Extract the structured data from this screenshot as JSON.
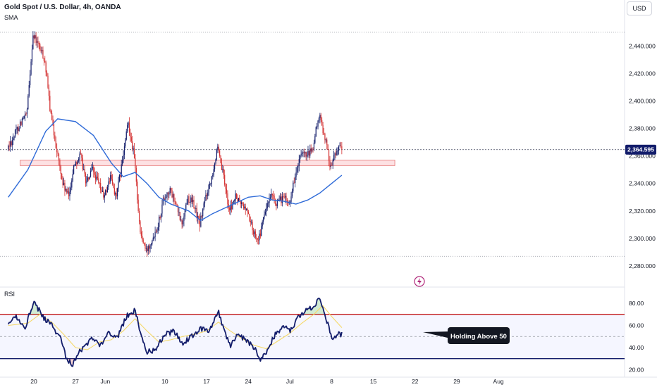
{
  "header": {
    "title": "Gold Spot / U.S. Dollar, 4h, OANDA",
    "indicator": "SMA",
    "currency": "USD"
  },
  "rsi_panel": {
    "label": "RSI"
  },
  "annotation": {
    "text": "Holding Above 50"
  },
  "current_price": "2,364.595",
  "colors": {
    "up": "#131d6b",
    "down": "#d32f2f",
    "sma": "#2f6bd8",
    "zone_fill": "#fde1e3",
    "zone_stroke": "#e57373",
    "rsi_line": "#131d6b",
    "rsi_ma": "#f5d96b",
    "rsi_upper": "#c62828",
    "rsi_lower": "#131d6b",
    "price_tag": "#131d6b",
    "flash_icon": "#b0287a"
  },
  "icons": {
    "flash": "flash-icon"
  },
  "chart_data": [
    {
      "type": "candlestick",
      "title": "Gold Spot / U.S. Dollar, 4h, OANDA",
      "y_ticks": [
        "2,440.000",
        "2,420.000",
        "2,400.000",
        "2,380.000",
        "2,360.000",
        "2,340.000",
        "2,320.000",
        "2,300.000",
        "2,280.000"
      ],
      "y_tick_values": [
        2440,
        2420,
        2400,
        2380,
        2360,
        2340,
        2320,
        2300,
        2280
      ],
      "ylim": [
        2281,
        2453
      ],
      "x_ticks": [
        "20",
        "27",
        "Jun",
        "10",
        "17",
        "24",
        "Jul",
        "8",
        "15",
        "22",
        "29",
        "Aug"
      ],
      "x_tick_days": [
        0,
        7,
        12,
        22,
        29,
        36,
        43,
        50,
        57,
        64,
        71,
        78
      ],
      "x_start_label": "May 20",
      "price_levels": [
        2450,
        2287
      ],
      "current_price_value": 2364.595,
      "resistance_zone": {
        "low": 2353,
        "high": 2357,
        "start_day": -2.3,
        "end_day": 60.6
      },
      "anchors": [
        [
          -4.3,
          2365
        ],
        [
          -2,
          2385
        ],
        [
          -1,
          2390
        ],
        [
          0,
          2448
        ],
        [
          1,
          2440
        ],
        [
          2,
          2430
        ],
        [
          3,
          2390
        ],
        [
          4,
          2365
        ],
        [
          5,
          2340
        ],
        [
          6,
          2330
        ],
        [
          7,
          2355
        ],
        [
          8,
          2360
        ],
        [
          9,
          2340
        ],
        [
          10,
          2350
        ],
        [
          11,
          2340
        ],
        [
          12,
          2330
        ],
        [
          13,
          2345
        ],
        [
          14,
          2330
        ],
        [
          15,
          2355
        ],
        [
          16,
          2385
        ],
        [
          17,
          2360
        ],
        [
          18,
          2305
        ],
        [
          19,
          2290
        ],
        [
          20,
          2300
        ],
        [
          21,
          2310
        ],
        [
          22,
          2330
        ],
        [
          23,
          2335
        ],
        [
          24,
          2325
        ],
        [
          25,
          2310
        ],
        [
          26,
          2330
        ],
        [
          27,
          2325
        ],
        [
          28,
          2310
        ],
        [
          29,
          2330
        ],
        [
          30,
          2345
        ],
        [
          31,
          2365
        ],
        [
          32,
          2345
        ],
        [
          33,
          2320
        ],
        [
          34,
          2330
        ],
        [
          35,
          2325
        ],
        [
          36,
          2320
        ],
        [
          37,
          2305
        ],
        [
          38,
          2300
        ],
        [
          39,
          2320
        ],
        [
          40,
          2330
        ],
        [
          41,
          2325
        ],
        [
          42,
          2330
        ],
        [
          43,
          2325
        ],
        [
          44,
          2345
        ],
        [
          45,
          2360
        ],
        [
          46,
          2360
        ],
        [
          47,
          2365
        ],
        [
          48,
          2390
        ],
        [
          49,
          2375
        ],
        [
          50,
          2352
        ],
        [
          51,
          2365
        ],
        [
          51.7,
          2365
        ]
      ],
      "sma_points": [
        [
          -4.3,
          2330
        ],
        [
          -1,
          2350
        ],
        [
          2,
          2378
        ],
        [
          4,
          2387
        ],
        [
          7,
          2385
        ],
        [
          10,
          2375
        ],
        [
          13,
          2355
        ],
        [
          15,
          2345
        ],
        [
          17,
          2348
        ],
        [
          19,
          2340
        ],
        [
          21,
          2330
        ],
        [
          23,
          2325
        ],
        [
          26,
          2320
        ],
        [
          28,
          2313
        ],
        [
          30,
          2318
        ],
        [
          32,
          2322
        ],
        [
          34,
          2326
        ],
        [
          36,
          2330
        ],
        [
          38,
          2331
        ],
        [
          40,
          2328
        ],
        [
          42,
          2327
        ],
        [
          44,
          2325
        ],
        [
          46,
          2328
        ],
        [
          48,
          2333
        ],
        [
          50,
          2340
        ],
        [
          51.7,
          2346
        ]
      ]
    },
    {
      "type": "line",
      "title": "RSI",
      "y_ticks": [
        "80.00",
        "60.00",
        "40.00",
        "20.00"
      ],
      "y_tick_values": [
        80,
        60,
        40,
        20
      ],
      "ylim": [
        19,
        87
      ],
      "upper_band": 70,
      "middle_band": 50,
      "lower_band": 30,
      "anchors": [
        [
          -4.3,
          60
        ],
        [
          -3,
          68
        ],
        [
          -1.5,
          58
        ],
        [
          0,
          82
        ],
        [
          1.5,
          68
        ],
        [
          3,
          60
        ],
        [
          4.5,
          48
        ],
        [
          5.5,
          30
        ],
        [
          6.5,
          25
        ],
        [
          7.5,
          35
        ],
        [
          9,
          44
        ],
        [
          10,
          50
        ],
        [
          11,
          40
        ],
        [
          12.5,
          55
        ],
        [
          14,
          48
        ],
        [
          15.5,
          68
        ],
        [
          17,
          74
        ],
        [
          18,
          52
        ],
        [
          19,
          36
        ],
        [
          20.5,
          38
        ],
        [
          22,
          52
        ],
        [
          23.5,
          55
        ],
        [
          25,
          44
        ],
        [
          26.5,
          50
        ],
        [
          28,
          57
        ],
        [
          29.5,
          55
        ],
        [
          31,
          72
        ],
        [
          32,
          55
        ],
        [
          33,
          40
        ],
        [
          34,
          52
        ],
        [
          35.5,
          48
        ],
        [
          37,
          40
        ],
        [
          38,
          30
        ],
        [
          39,
          35
        ],
        [
          40.5,
          52
        ],
        [
          42,
          60
        ],
        [
          43,
          55
        ],
        [
          44.5,
          68
        ],
        [
          45.5,
          72
        ],
        [
          47,
          78
        ],
        [
          48,
          85
        ],
        [
          49,
          68
        ],
        [
          50,
          48
        ],
        [
          51,
          52
        ],
        [
          51.7,
          52
        ]
      ],
      "ma_anchors": [
        [
          -4.3,
          60
        ],
        [
          -1,
          62
        ],
        [
          1,
          70
        ],
        [
          3,
          63
        ],
        [
          5,
          52
        ],
        [
          7,
          40
        ],
        [
          9,
          38
        ],
        [
          11,
          45
        ],
        [
          13,
          47
        ],
        [
          15,
          55
        ],
        [
          17,
          66
        ],
        [
          19,
          55
        ],
        [
          21,
          45
        ],
        [
          23,
          47
        ],
        [
          25,
          50
        ],
        [
          27,
          52
        ],
        [
          29,
          55
        ],
        [
          31,
          63
        ],
        [
          33,
          55
        ],
        [
          35,
          48
        ],
        [
          37,
          42
        ],
        [
          39,
          39
        ],
        [
          41,
          46
        ],
        [
          43,
          53
        ],
        [
          45,
          62
        ],
        [
          47,
          70
        ],
        [
          48.5,
          78
        ],
        [
          50,
          68
        ],
        [
          51.7,
          58
        ]
      ]
    }
  ]
}
